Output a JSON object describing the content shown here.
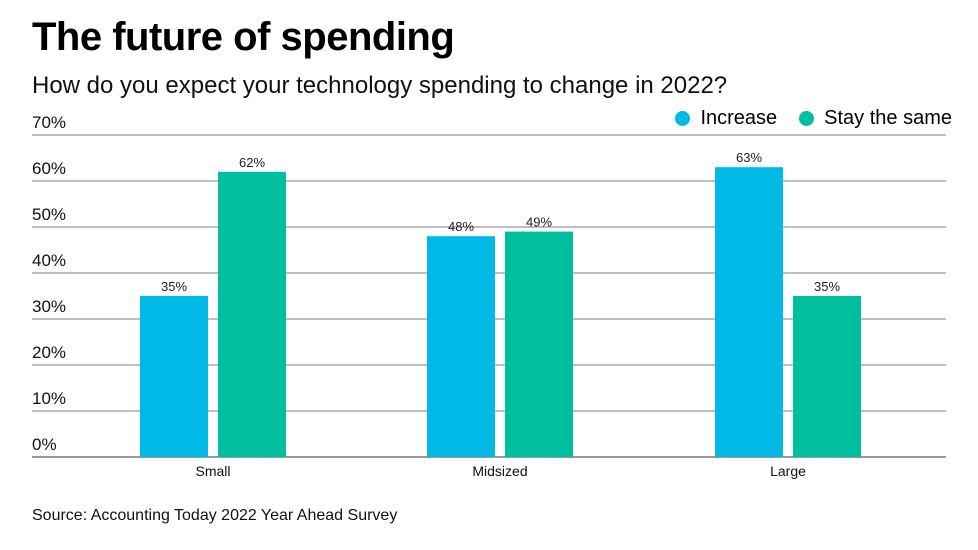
{
  "chart_data": {
    "type": "bar",
    "title": "The future of spending",
    "subtitle": "How do you expect your technology spending to change in 2022?",
    "categories": [
      "Small",
      "Midsized",
      "Large"
    ],
    "series": [
      {
        "name": "Increase",
        "color": "#00b9e6",
        "values": [
          35,
          48,
          63
        ]
      },
      {
        "name": "Stay the same",
        "color": "#00bf9f",
        "values": [
          62,
          49,
          35
        ]
      }
    ],
    "data_labels": [
      [
        "35%",
        "48%",
        "63%"
      ],
      [
        "62%",
        "49%",
        "35%"
      ]
    ],
    "yticks": [
      "0%",
      "10%",
      "20%",
      "30%",
      "40%",
      "50%",
      "60%",
      "70%"
    ],
    "ylim": [
      0,
      70
    ],
    "xlabel": "",
    "ylabel": "",
    "grid": true,
    "legend": "top-right",
    "source": "Source: Accounting Today 2022 Year Ahead Survey"
  },
  "colors": {
    "gridline": "#555555",
    "axis": "#333333"
  }
}
